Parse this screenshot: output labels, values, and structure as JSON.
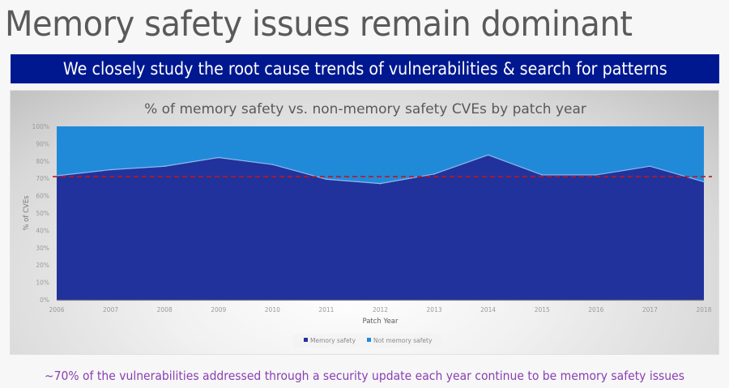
{
  "slide": {
    "title": "Memory safety issues remain dominant",
    "banner": "We closely study the root cause trends of vulnerabilities & search for patterns",
    "footer": "~70% of the vulnerabilities addressed through a security update each year continue to be memory safety issues"
  },
  "colors": {
    "banner_bg": "#00188f",
    "memory_safety": "#22329c",
    "not_memory_safety": "#208ad8",
    "reference_line": "#c0161c",
    "footer_text": "#8a3fb3"
  },
  "chart_data": {
    "type": "area",
    "stacked": true,
    "percent_stacked": true,
    "title": "% of memory safety vs. non-memory safety CVEs by patch year",
    "xlabel": "Patch Year",
    "ylabel": "% of CVEs",
    "x": [
      "2006",
      "2007",
      "2008",
      "2009",
      "2010",
      "2011",
      "2012",
      "2013",
      "2014",
      "2015",
      "2016",
      "2017",
      "2018"
    ],
    "series": [
      {
        "name": "Memory safety",
        "color": "#22329c",
        "values": [
          71.5,
          75,
          77,
          82,
          78,
          69.5,
          67,
          72.5,
          83.5,
          72,
          72,
          77,
          68
        ]
      },
      {
        "name": "Not memory safety",
        "color": "#208ad8",
        "values": [
          28.5,
          25,
          23,
          18,
          22,
          30.5,
          33,
          27.5,
          16.5,
          28,
          28,
          23,
          32
        ]
      }
    ],
    "ylim": [
      0,
      100
    ],
    "yticks": [
      "0%",
      "10%",
      "20%",
      "30%",
      "40%",
      "50%",
      "60%",
      "70%",
      "80%",
      "90%",
      "100%"
    ],
    "reference_line": {
      "value": 71,
      "style": "dashed",
      "color": "#c0161c"
    },
    "legend": {
      "position": "bottom",
      "entries": [
        "Memory safety",
        "Not memory safety"
      ]
    },
    "grid": false
  }
}
